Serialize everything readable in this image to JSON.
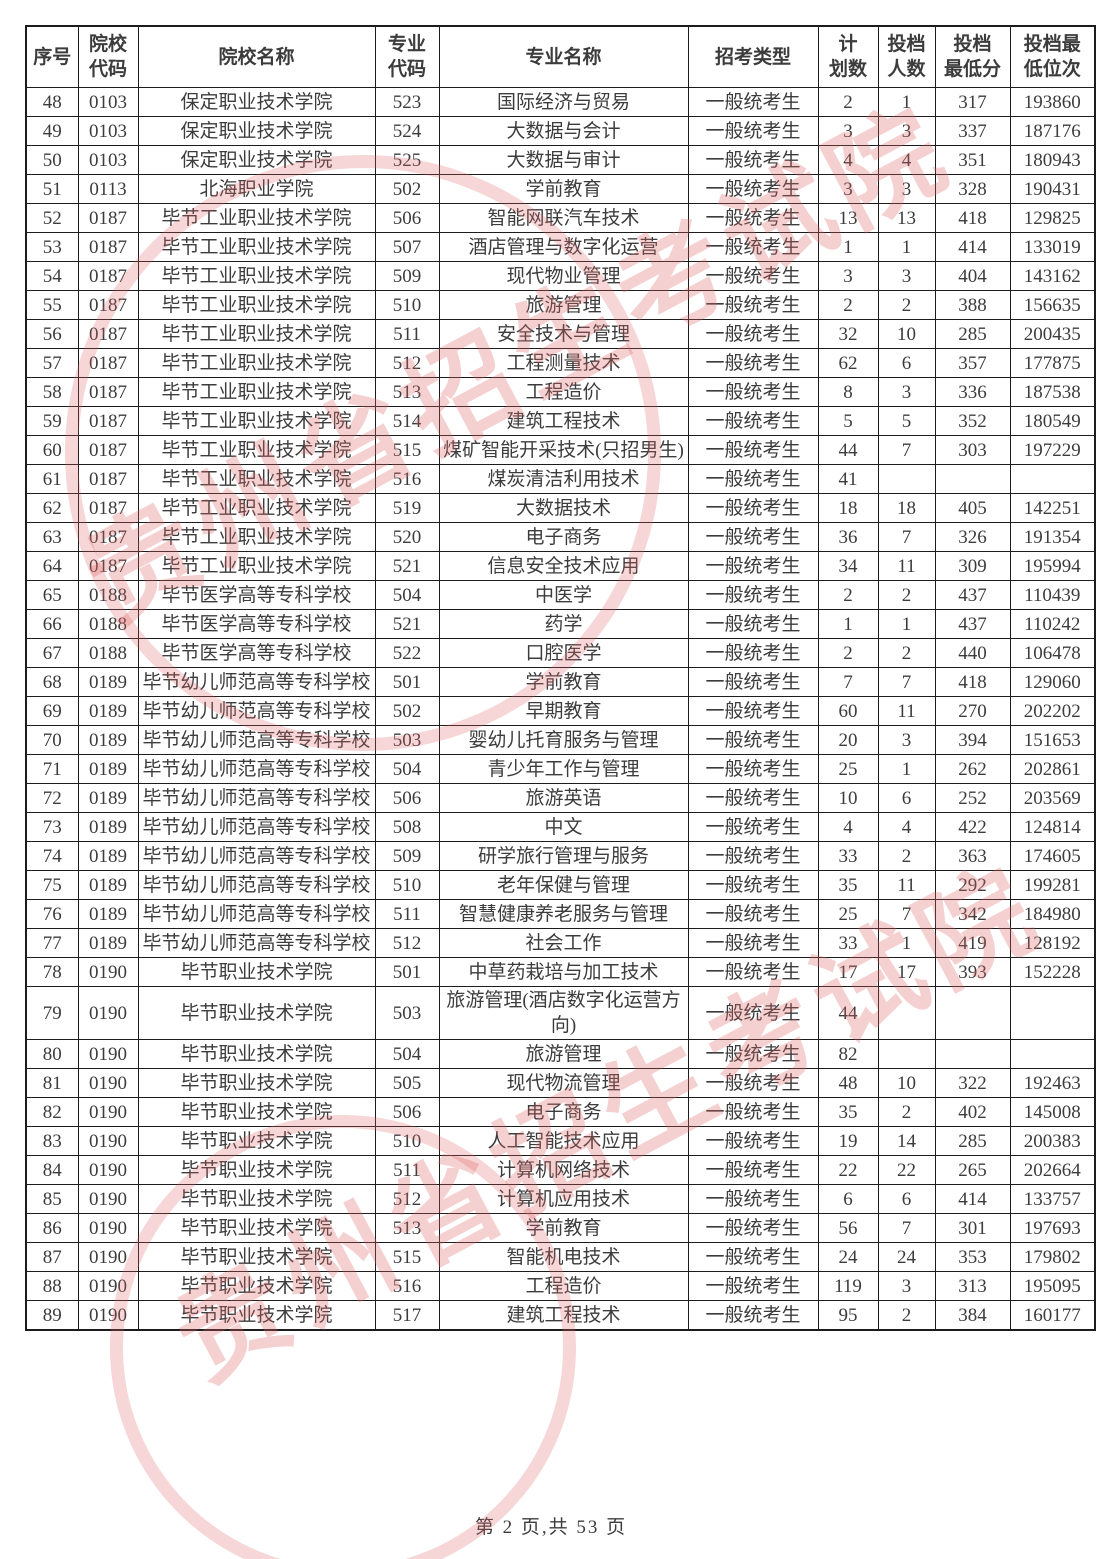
{
  "page": {
    "footer": "第 2 页,共 53 页"
  },
  "watermark": {
    "text": "贵州省招生考试院",
    "color": "#de6262"
  },
  "table": {
    "columns": [
      "序号",
      "院校\n代码",
      "院校名称",
      "专业\n代码",
      "专业名称",
      "招考类型",
      "计\n划数",
      "投档\n人数",
      "投档\n最低分",
      "投档最\n低位次"
    ],
    "column_keys": [
      "seq",
      "college-code",
      "college-name",
      "major-code",
      "major-name",
      "exam-type",
      "plan-count",
      "filed-count",
      "min-score",
      "min-rank"
    ],
    "rows": [
      [
        "48",
        "0103",
        "保定职业技术学院",
        "523",
        "国际经济与贸易",
        "一般统考生",
        "2",
        "1",
        "317",
        "193860"
      ],
      [
        "49",
        "0103",
        "保定职业技术学院",
        "524",
        "大数据与会计",
        "一般统考生",
        "3",
        "3",
        "337",
        "187176"
      ],
      [
        "50",
        "0103",
        "保定职业技术学院",
        "525",
        "大数据与审计",
        "一般统考生",
        "4",
        "4",
        "351",
        "180943"
      ],
      [
        "51",
        "0113",
        "北海职业学院",
        "502",
        "学前教育",
        "一般统考生",
        "3",
        "3",
        "328",
        "190431"
      ],
      [
        "52",
        "0187",
        "毕节工业职业技术学院",
        "506",
        "智能网联汽车技术",
        "一般统考生",
        "13",
        "13",
        "418",
        "129825"
      ],
      [
        "53",
        "0187",
        "毕节工业职业技术学院",
        "507",
        "酒店管理与数字化运营",
        "一般统考生",
        "1",
        "1",
        "414",
        "133019"
      ],
      [
        "54",
        "0187",
        "毕节工业职业技术学院",
        "509",
        "现代物业管理",
        "一般统考生",
        "3",
        "3",
        "404",
        "143162"
      ],
      [
        "55",
        "0187",
        "毕节工业职业技术学院",
        "510",
        "旅游管理",
        "一般统考生",
        "2",
        "2",
        "388",
        "156635"
      ],
      [
        "56",
        "0187",
        "毕节工业职业技术学院",
        "511",
        "安全技术与管理",
        "一般统考生",
        "32",
        "10",
        "285",
        "200435"
      ],
      [
        "57",
        "0187",
        "毕节工业职业技术学院",
        "512",
        "工程测量技术",
        "一般统考生",
        "62",
        "6",
        "357",
        "177875"
      ],
      [
        "58",
        "0187",
        "毕节工业职业技术学院",
        "513",
        "工程造价",
        "一般统考生",
        "8",
        "3",
        "336",
        "187538"
      ],
      [
        "59",
        "0187",
        "毕节工业职业技术学院",
        "514",
        "建筑工程技术",
        "一般统考生",
        "5",
        "5",
        "352",
        "180549"
      ],
      [
        "60",
        "0187",
        "毕节工业职业技术学院",
        "515",
        "煤矿智能开采技术(只招男生)",
        "一般统考生",
        "44",
        "7",
        "303",
        "197229"
      ],
      [
        "61",
        "0187",
        "毕节工业职业技术学院",
        "516",
        "煤炭清洁利用技术",
        "一般统考生",
        "41",
        "",
        "",
        ""
      ],
      [
        "62",
        "0187",
        "毕节工业职业技术学院",
        "519",
        "大数据技术",
        "一般统考生",
        "18",
        "18",
        "405",
        "142251"
      ],
      [
        "63",
        "0187",
        "毕节工业职业技术学院",
        "520",
        "电子商务",
        "一般统考生",
        "36",
        "7",
        "326",
        "191354"
      ],
      [
        "64",
        "0187",
        "毕节工业职业技术学院",
        "521",
        "信息安全技术应用",
        "一般统考生",
        "34",
        "11",
        "309",
        "195994"
      ],
      [
        "65",
        "0188",
        "毕节医学高等专科学校",
        "504",
        "中医学",
        "一般统考生",
        "2",
        "2",
        "437",
        "110439"
      ],
      [
        "66",
        "0188",
        "毕节医学高等专科学校",
        "521",
        "药学",
        "一般统考生",
        "1",
        "1",
        "437",
        "110242"
      ],
      [
        "67",
        "0188",
        "毕节医学高等专科学校",
        "522",
        "口腔医学",
        "一般统考生",
        "2",
        "2",
        "440",
        "106478"
      ],
      [
        "68",
        "0189",
        "毕节幼儿师范高等专科学校",
        "501",
        "学前教育",
        "一般统考生",
        "7",
        "7",
        "418",
        "129060"
      ],
      [
        "69",
        "0189",
        "毕节幼儿师范高等专科学校",
        "502",
        "早期教育",
        "一般统考生",
        "60",
        "11",
        "270",
        "202202"
      ],
      [
        "70",
        "0189",
        "毕节幼儿师范高等专科学校",
        "503",
        "婴幼儿托育服务与管理",
        "一般统考生",
        "20",
        "3",
        "394",
        "151653"
      ],
      [
        "71",
        "0189",
        "毕节幼儿师范高等专科学校",
        "504",
        "青少年工作与管理",
        "一般统考生",
        "25",
        "1",
        "262",
        "202861"
      ],
      [
        "72",
        "0189",
        "毕节幼儿师范高等专科学校",
        "506",
        "旅游英语",
        "一般统考生",
        "10",
        "6",
        "252",
        "203569"
      ],
      [
        "73",
        "0189",
        "毕节幼儿师范高等专科学校",
        "508",
        "中文",
        "一般统考生",
        "4",
        "4",
        "422",
        "124814"
      ],
      [
        "74",
        "0189",
        "毕节幼儿师范高等专科学校",
        "509",
        "研学旅行管理与服务",
        "一般统考生",
        "33",
        "2",
        "363",
        "174605"
      ],
      [
        "75",
        "0189",
        "毕节幼儿师范高等专科学校",
        "510",
        "老年保健与管理",
        "一般统考生",
        "35",
        "11",
        "292",
        "199281"
      ],
      [
        "76",
        "0189",
        "毕节幼儿师范高等专科学校",
        "511",
        "智慧健康养老服务与管理",
        "一般统考生",
        "25",
        "7",
        "342",
        "184980"
      ],
      [
        "77",
        "0189",
        "毕节幼儿师范高等专科学校",
        "512",
        "社会工作",
        "一般统考生",
        "33",
        "1",
        "419",
        "128192"
      ],
      [
        "78",
        "0190",
        "毕节职业技术学院",
        "501",
        "中草药栽培与加工技术",
        "一般统考生",
        "17",
        "17",
        "393",
        "152228"
      ],
      [
        "79",
        "0190",
        "毕节职业技术学院",
        "503",
        "旅游管理(酒店数字化运营方向)",
        "一般统考生",
        "44",
        "",
        "",
        ""
      ],
      [
        "80",
        "0190",
        "毕节职业技术学院",
        "504",
        "旅游管理",
        "一般统考生",
        "82",
        "",
        "",
        ""
      ],
      [
        "81",
        "0190",
        "毕节职业技术学院",
        "505",
        "现代物流管理",
        "一般统考生",
        "48",
        "10",
        "322",
        "192463"
      ],
      [
        "82",
        "0190",
        "毕节职业技术学院",
        "506",
        "电子商务",
        "一般统考生",
        "35",
        "2",
        "402",
        "145008"
      ],
      [
        "83",
        "0190",
        "毕节职业技术学院",
        "510",
        "人工智能技术应用",
        "一般统考生",
        "19",
        "14",
        "285",
        "200383"
      ],
      [
        "84",
        "0190",
        "毕节职业技术学院",
        "511",
        "计算机网络技术",
        "一般统考生",
        "22",
        "22",
        "265",
        "202664"
      ],
      [
        "85",
        "0190",
        "毕节职业技术学院",
        "512",
        "计算机应用技术",
        "一般统考生",
        "6",
        "6",
        "414",
        "133757"
      ],
      [
        "86",
        "0190",
        "毕节职业技术学院",
        "513",
        "学前教育",
        "一般统考生",
        "56",
        "7",
        "301",
        "197693"
      ],
      [
        "87",
        "0190",
        "毕节职业技术学院",
        "515",
        "智能机电技术",
        "一般统考生",
        "24",
        "24",
        "353",
        "179802"
      ],
      [
        "88",
        "0190",
        "毕节职业技术学院",
        "516",
        "工程造价",
        "一般统考生",
        "119",
        "3",
        "313",
        "195095"
      ],
      [
        "89",
        "0190",
        "毕节职业技术学院",
        "517",
        "建筑工程技术",
        "一般统考生",
        "95",
        "2",
        "384",
        "160177"
      ]
    ]
  }
}
